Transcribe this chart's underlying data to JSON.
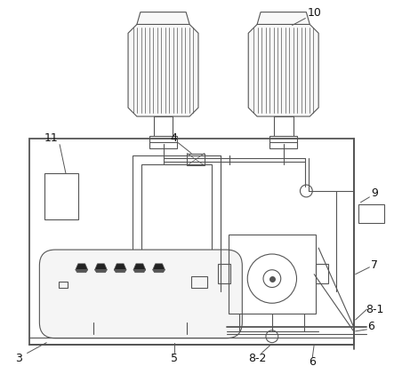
{
  "bg_color": "#ffffff",
  "line_color": "#555555",
  "fig_width": 4.43,
  "fig_height": 4.21,
  "dpi": 100
}
